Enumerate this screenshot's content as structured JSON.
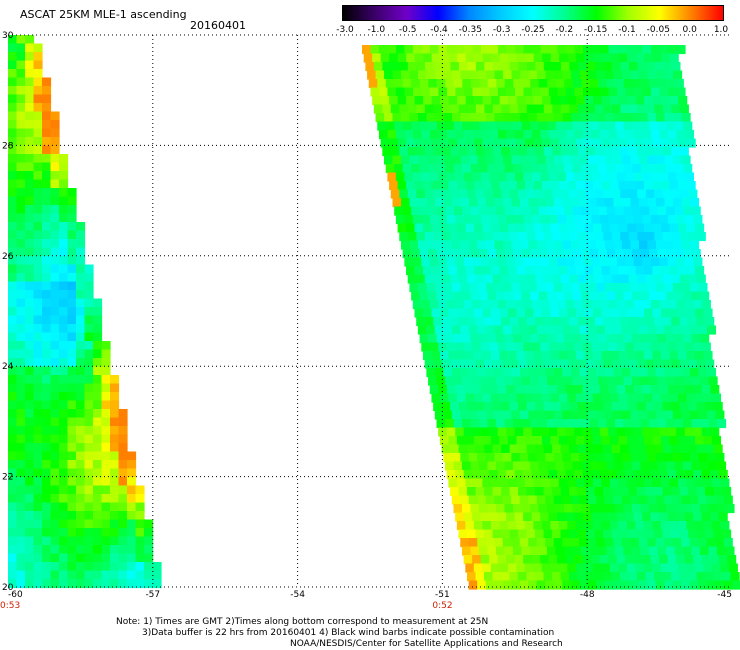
{
  "header": {
    "title": "ASCAT 25KM MLE-1 ascending",
    "date": "20160401"
  },
  "colorbar": {
    "labels": [
      "-3.0",
      "-1.0",
      "-0.5",
      "-0.4",
      "-0.35",
      "-0.3",
      "-0.25",
      "-0.2",
      "-0.15",
      "-0.1",
      "-0.05",
      "0.0",
      "1.0"
    ],
    "colors": [
      "#000000",
      "#3a0068",
      "#7000c8",
      "#0000ff",
      "#0088ff",
      "#00ccff",
      "#00ffff",
      "#00ff90",
      "#00ff00",
      "#a0ff00",
      "#ffff00",
      "#ff8000",
      "#ff0000"
    ]
  },
  "map": {
    "lon_ticks": [
      "-60",
      "-57",
      "-54",
      "-51",
      "-48",
      "-45"
    ],
    "lat_ticks": [
      "30",
      "28",
      "26",
      "24",
      "22",
      "20"
    ],
    "lon_range": [
      -60,
      -45
    ],
    "lat_range": [
      20,
      30
    ],
    "pass_times": [
      {
        "label": "0:53",
        "lon": -60
      },
      {
        "label": "0:52",
        "lon": -51
      }
    ],
    "grid": true
  },
  "notes": {
    "line1": "Note: 1) Times are GMT 2)Times along bottom correspond to measurement at 25N",
    "line2": "3)Data buffer is 22 hrs from 20160401 4) Black wind barbs indicate possible contamination",
    "line3": "NOAA/NESDIS/Center for Satellite Applications and Research"
  }
}
